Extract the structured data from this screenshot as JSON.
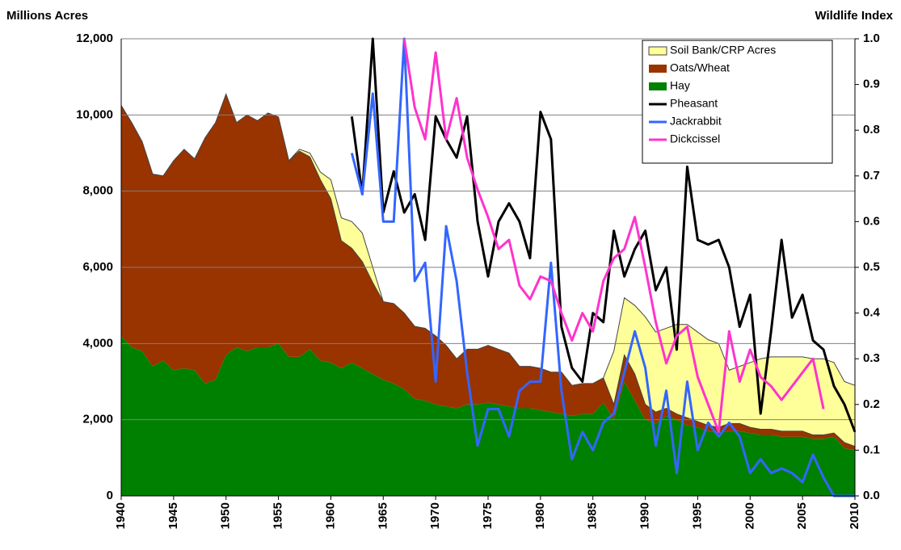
{
  "chart_data": {
    "type": "area",
    "y_label": "Millions Acres",
    "y2_label": "Wildlife Index",
    "x": [
      1940,
      1941,
      1942,
      1943,
      1944,
      1945,
      1946,
      1947,
      1948,
      1949,
      1950,
      1951,
      1952,
      1953,
      1954,
      1955,
      1956,
      1957,
      1958,
      1959,
      1960,
      1961,
      1962,
      1963,
      1964,
      1965,
      1966,
      1967,
      1968,
      1969,
      1970,
      1971,
      1972,
      1973,
      1974,
      1975,
      1976,
      1977,
      1978,
      1979,
      1980,
      1981,
      1982,
      1983,
      1984,
      1985,
      1986,
      1987,
      1988,
      1989,
      1990,
      1991,
      1992,
      1993,
      1994,
      1995,
      1996,
      1997,
      1998,
      1999,
      2000,
      2001,
      2002,
      2003,
      2004,
      2005,
      2006,
      2007,
      2008,
      2009,
      2010
    ],
    "xlim": [
      1940,
      2010
    ],
    "xticks": [
      1940,
      1945,
      1950,
      1955,
      1960,
      1965,
      1970,
      1975,
      1980,
      1985,
      1990,
      1995,
      2000,
      2005,
      2010
    ],
    "ylim": [
      0,
      12000
    ],
    "yticks": [
      0,
      {
        "value": 2000,
        "label": "2,000"
      },
      {
        "value": 4000,
        "label": "4,000"
      },
      {
        "value": 6000,
        "label": "6,000"
      },
      {
        "value": 8000,
        "label": "8,000"
      },
      {
        "value": 10000,
        "label": "10,000"
      },
      {
        "value": 12000,
        "label": "12,000"
      }
    ],
    "y2lim": [
      0,
      1
    ],
    "y2ticks": [
      {
        "value": 0,
        "label": "0.0"
      },
      0.1,
      0.2,
      0.3,
      0.4,
      0.5,
      0.6,
      0.7,
      0.8,
      0.9,
      {
        "value": 1,
        "label": "1.0"
      }
    ],
    "grid": true,
    "legend": "upper right",
    "series": [
      {
        "name": "Soil Bank/CRP Acres",
        "type": "area",
        "color": "#ffff99",
        "values": [
          0,
          0,
          0,
          0,
          0,
          0,
          0,
          0,
          0,
          0,
          0,
          0,
          0,
          0,
          0,
          0,
          0,
          50,
          100,
          200,
          500,
          600,
          700,
          750,
          400,
          0,
          0,
          0,
          0,
          0,
          0,
          0,
          0,
          0,
          0,
          0,
          0,
          0,
          0,
          0,
          0,
          0,
          0,
          0,
          0,
          0,
          0,
          1400,
          1500,
          1800,
          2300,
          2100,
          2100,
          2350,
          2450,
          2350,
          2250,
          2200,
          1400,
          1500,
          1700,
          1850,
          1900,
          1950,
          1950,
          1950,
          2000,
          2000,
          1850,
          1600,
          1600
        ]
      },
      {
        "name": "Oats/Wheat",
        "type": "area",
        "color": "#993300",
        "values": [
          6050,
          5900,
          5500,
          5050,
          4850,
          5500,
          5750,
          5550,
          6450,
          6750,
          6850,
          5900,
          6200,
          5950,
          6150,
          5950,
          5150,
          5400,
          5050,
          4750,
          4300,
          3350,
          3000,
          2800,
          2400,
          2050,
          2100,
          2000,
          1900,
          1900,
          1800,
          1600,
          1300,
          1450,
          1450,
          1500,
          1450,
          1400,
          1100,
          1100,
          1100,
          1050,
          1100,
          800,
          800,
          800,
          650,
          400,
          700,
          700,
          400,
          300,
          200,
          150,
          200,
          150,
          150,
          150,
          200,
          200,
          150,
          150,
          150,
          150,
          150,
          150,
          100,
          100,
          100,
          150,
          100
        ]
      },
      {
        "name": "Hay",
        "type": "area",
        "color": "#008000",
        "values": [
          4200,
          3900,
          3800,
          3400,
          3550,
          3300,
          3350,
          3300,
          2950,
          3050,
          3700,
          3900,
          3800,
          3900,
          3900,
          4000,
          3650,
          3650,
          3850,
          3550,
          3500,
          3350,
          3500,
          3350,
          3200,
          3050,
          2950,
          2800,
          2550,
          2500,
          2400,
          2350,
          2300,
          2400,
          2400,
          2450,
          2400,
          2350,
          2300,
          2300,
          2250,
          2200,
          2150,
          2100,
          2150,
          2150,
          2450,
          2000,
          3000,
          2500,
          2000,
          1900,
          2100,
          2000,
          1850,
          1800,
          1700,
          1650,
          1700,
          1700,
          1650,
          1600,
          1600,
          1550,
          1550,
          1550,
          1500,
          1500,
          1550,
          1250,
          1200
        ]
      },
      {
        "name": "Pheasant",
        "type": "line",
        "axis": "y2",
        "color": "#000000",
        "values": [
          null,
          null,
          null,
          null,
          null,
          null,
          null,
          null,
          null,
          null,
          null,
          null,
          null,
          null,
          null,
          null,
          null,
          null,
          null,
          null,
          null,
          null,
          0.83,
          0.66,
          1.0,
          0.62,
          0.71,
          0.62,
          0.66,
          0.56,
          0.83,
          0.78,
          0.74,
          0.83,
          0.6,
          0.48,
          0.6,
          0.64,
          0.6,
          0.52,
          0.84,
          0.78,
          0.37,
          0.28,
          0.25,
          0.4,
          0.38,
          0.58,
          0.48,
          0.54,
          0.58,
          0.45,
          0.5,
          0.32,
          0.72,
          0.56,
          0.55,
          0.56,
          0.5,
          0.37,
          0.44,
          0.18,
          0.36,
          0.56,
          0.39,
          0.44,
          0.34,
          0.32,
          0.24,
          0.2,
          0.14
        ]
      },
      {
        "name": "Jackrabbit",
        "type": "line",
        "axis": "y2",
        "color": "#3366ff",
        "values": [
          null,
          null,
          null,
          null,
          null,
          null,
          null,
          null,
          null,
          null,
          null,
          null,
          null,
          null,
          null,
          null,
          null,
          null,
          null,
          null,
          null,
          null,
          0.75,
          0.66,
          0.88,
          0.6,
          0.6,
          1.0,
          0.47,
          0.51,
          0.25,
          0.59,
          0.47,
          0.27,
          0.11,
          0.19,
          0.19,
          0.13,
          0.23,
          0.25,
          0.25,
          0.51,
          0.23,
          0.08,
          0.14,
          0.1,
          0.16,
          0.18,
          0.27,
          0.36,
          0.28,
          0.11,
          0.23,
          0.05,
          0.25,
          0.1,
          0.16,
          0.13,
          0.16,
          0.13,
          0.05,
          0.08,
          0.05,
          0.06,
          0.05,
          0.03,
          0.09,
          0.04,
          0,
          0,
          0
        ]
      },
      {
        "name": "Dickcissel",
        "type": "line",
        "axis": "y2",
        "color": "#ff33cc",
        "values": [
          null,
          null,
          null,
          null,
          null,
          null,
          null,
          null,
          null,
          null,
          null,
          null,
          null,
          null,
          null,
          null,
          null,
          null,
          null,
          null,
          null,
          null,
          null,
          null,
          null,
          null,
          null,
          1.0,
          0.85,
          0.78,
          0.97,
          0.78,
          0.87,
          0.74,
          0.67,
          0.61,
          0.54,
          0.56,
          0.46,
          0.43,
          0.48,
          0.47,
          0.4,
          0.34,
          0.4,
          0.36,
          0.47,
          0.52,
          0.54,
          0.61,
          0.5,
          0.38,
          0.29,
          0.35,
          0.37,
          0.26,
          0.2,
          0.14,
          0.36,
          0.25,
          0.32,
          0.26,
          0.24,
          0.21,
          0.24,
          0.27,
          0.3,
          0.19,
          null,
          null,
          null
        ]
      }
    ]
  }
}
